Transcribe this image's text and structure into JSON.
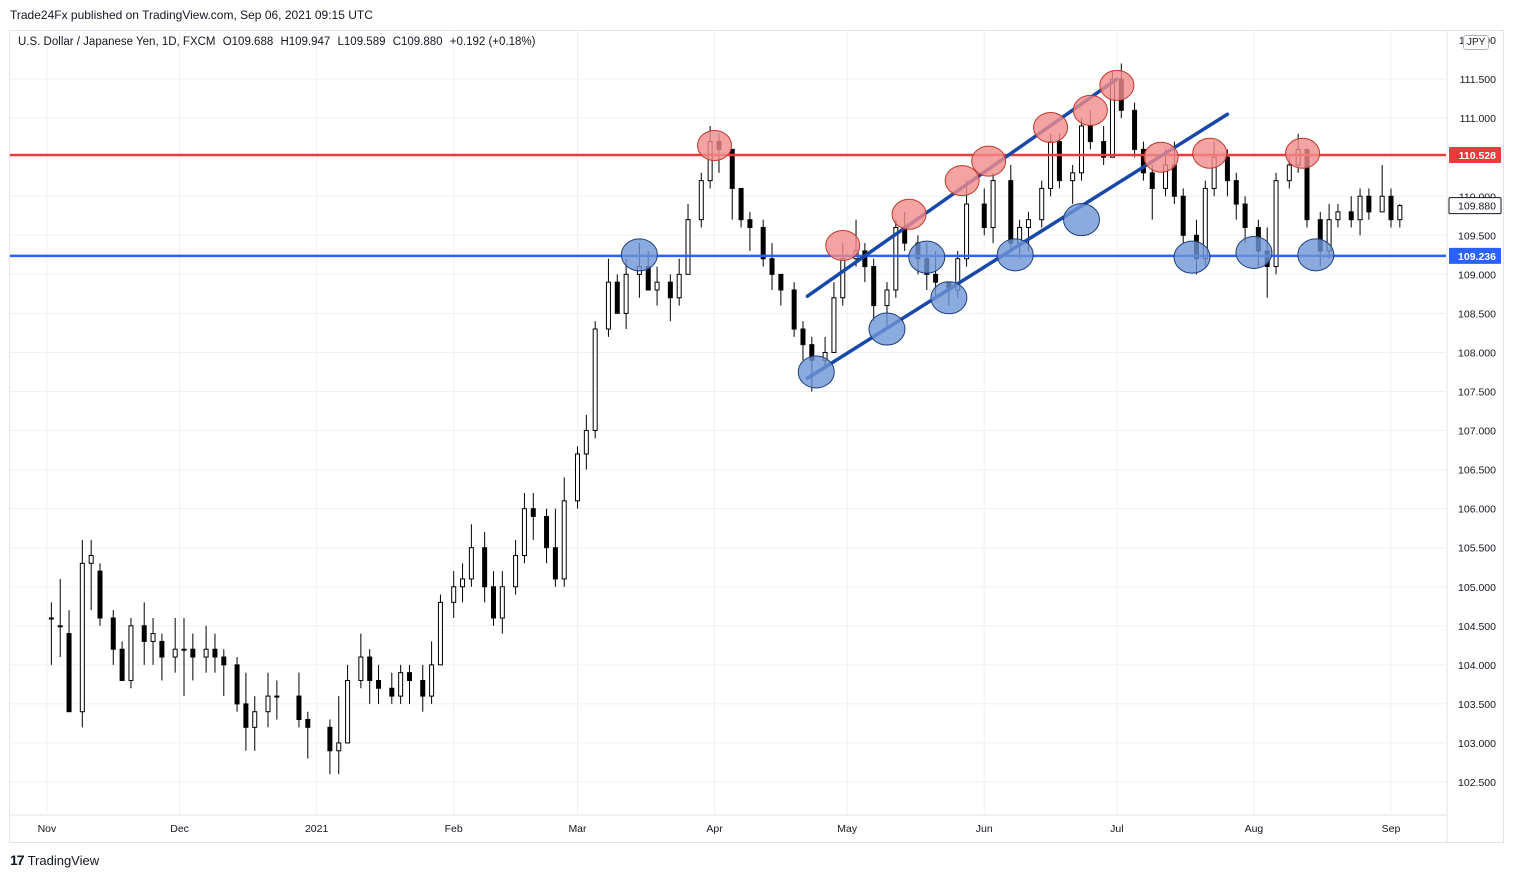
{
  "header": {
    "publisher": "Trade24Fx published on TradingView.com, Sep 06, 2021 09:15 UTC"
  },
  "legend": {
    "symbol": "U.S. Dollar / Japanese Yen, 1D, FXCM",
    "open": "O109.688",
    "high": "H109.947",
    "low": "L109.589",
    "close": "C109.880",
    "change": "+0.192 (+0.18%)"
  },
  "currency_badge": "JPY",
  "footer": {
    "brand": "TradingView"
  },
  "colors": {
    "resistance": "#e83b3b",
    "support": "#2962ff",
    "channel": "#1848a8",
    "grid": "#eef0f4",
    "candle": "#000000",
    "red_marker": "#f28b8b",
    "blue_marker": "#6e95d6"
  },
  "chart_data": {
    "type": "candlestick",
    "title": "U.S. Dollar / Japanese Yen, 1D, FXCM",
    "ylim": [
      102.1,
      112.4
    ],
    "y_ticks": [
      "102.500",
      "103.000",
      "103.500",
      "104.000",
      "104.500",
      "105.000",
      "105.500",
      "106.000",
      "106.500",
      "107.000",
      "107.500",
      "108.000",
      "108.500",
      "109.000",
      "109.500",
      "110.000",
      "110.500",
      "111.000",
      "111.500"
    ],
    "x_ticks": [
      "Nov",
      "Dec",
      "2021",
      "Feb",
      "Mar",
      "Apr",
      "May",
      "Jun",
      "Jul",
      "Aug",
      "Sep"
    ],
    "x_range": [
      "2020-11-01",
      "2021-09-06"
    ],
    "grid": true,
    "horizontal_levels": [
      {
        "value": 110.528,
        "label": "110.528",
        "role": "resistance"
      },
      {
        "value": 109.236,
        "label": "109.236",
        "role": "support"
      }
    ],
    "last_price": {
      "value": 109.88,
      "label": "109.880"
    },
    "top_price_label": "112.000",
    "channel_lines": [
      {
        "role": "upper",
        "start": [
          "2021-04-22",
          108.72
        ],
        "end": [
          "2021-07-01",
          111.5
        ]
      },
      {
        "role": "lower",
        "start": [
          "2021-04-22",
          107.67
        ],
        "end": [
          "2021-07-26",
          111.05
        ]
      }
    ],
    "resistance_touches": [
      [
        "2021-04-01",
        110.65
      ],
      [
        "2021-04-30",
        109.37
      ],
      [
        "2021-05-15",
        109.77
      ],
      [
        "2021-05-27",
        110.2
      ],
      [
        "2021-06-02",
        110.45
      ],
      [
        "2021-06-16",
        110.88
      ],
      [
        "2021-06-25",
        111.1
      ],
      [
        "2021-07-01",
        111.42
      ],
      [
        "2021-07-11",
        110.5
      ],
      [
        "2021-07-22",
        110.55
      ],
      [
        "2021-08-12",
        110.55
      ]
    ],
    "support_touches": [
      [
        "2021-03-15",
        109.25
      ],
      [
        "2021-04-24",
        107.75
      ],
      [
        "2021-05-10",
        108.3
      ],
      [
        "2021-05-19",
        109.22
      ],
      [
        "2021-05-24",
        108.7
      ],
      [
        "2021-06-08",
        109.25
      ],
      [
        "2021-06-23",
        109.7
      ],
      [
        "2021-07-18",
        109.22
      ],
      [
        "2021-08-01",
        109.28
      ],
      [
        "2021-08-15",
        109.25
      ]
    ],
    "candles_ohlc": [
      [
        "2020-11-02",
        104.6,
        104.8,
        104.0,
        104.6
      ],
      [
        "2020-11-04",
        104.5,
        105.1,
        104.1,
        104.5
      ],
      [
        "2020-11-06",
        104.4,
        104.7,
        103.5,
        103.4
      ],
      [
        "2020-11-09",
        103.4,
        105.6,
        103.2,
        105.3
      ],
      [
        "2020-11-11",
        105.3,
        105.6,
        104.7,
        105.4
      ],
      [
        "2020-11-13",
        105.2,
        105.3,
        104.5,
        104.6
      ],
      [
        "2020-11-16",
        104.6,
        104.7,
        104.0,
        104.2
      ],
      [
        "2020-11-18",
        104.2,
        104.3,
        103.8,
        103.8
      ],
      [
        "2020-11-20",
        103.8,
        104.6,
        103.7,
        104.5
      ],
      [
        "2020-11-23",
        104.5,
        104.8,
        104.0,
        104.3
      ],
      [
        "2020-11-25",
        104.3,
        104.6,
        104.0,
        104.4
      ],
      [
        "2020-11-27",
        104.3,
        104.4,
        103.8,
        104.1
      ],
      [
        "2020-11-30",
        104.1,
        104.6,
        103.9,
        104.2
      ],
      [
        "2020-12-02",
        104.2,
        104.6,
        103.6,
        104.2
      ],
      [
        "2020-12-04",
        104.2,
        104.4,
        103.8,
        104.1
      ],
      [
        "2020-12-07",
        104.1,
        104.5,
        103.9,
        104.2
      ],
      [
        "2020-12-09",
        104.2,
        104.4,
        103.9,
        104.1
      ],
      [
        "2020-12-11",
        104.1,
        104.2,
        103.6,
        104.0
      ],
      [
        "2020-12-14",
        104.0,
        104.1,
        103.4,
        103.5
      ],
      [
        "2020-12-16",
        103.5,
        103.9,
        102.9,
        103.2
      ],
      [
        "2020-12-18",
        103.2,
        103.6,
        102.9,
        103.4
      ],
      [
        "2020-12-21",
        103.4,
        103.9,
        103.2,
        103.6
      ],
      [
        "2020-12-23",
        103.6,
        103.8,
        103.3,
        103.6
      ],
      [
        "2020-12-28",
        103.6,
        103.9,
        103.2,
        103.3
      ],
      [
        "2020-12-30",
        103.3,
        103.4,
        102.8,
        103.2
      ],
      [
        "2021-01-04",
        103.2,
        103.3,
        102.6,
        102.9
      ],
      [
        "2021-01-06",
        102.9,
        103.6,
        102.6,
        103.0
      ],
      [
        "2021-01-08",
        103.0,
        104.0,
        103.0,
        103.8
      ],
      [
        "2021-01-11",
        103.8,
        104.4,
        103.7,
        104.1
      ],
      [
        "2021-01-13",
        104.1,
        104.2,
        103.5,
        103.8
      ],
      [
        "2021-01-15",
        103.8,
        104.0,
        103.5,
        103.7
      ],
      [
        "2021-01-18",
        103.7,
        103.9,
        103.5,
        103.6
      ],
      [
        "2021-01-20",
        103.6,
        104.0,
        103.5,
        103.9
      ],
      [
        "2021-01-22",
        103.9,
        104.0,
        103.5,
        103.8
      ],
      [
        "2021-01-25",
        103.8,
        104.0,
        103.4,
        103.6
      ],
      [
        "2021-01-27",
        103.6,
        104.3,
        103.5,
        104.0
      ],
      [
        "2021-01-29",
        104.0,
        104.9,
        104.0,
        104.8
      ],
      [
        "2021-02-01",
        104.8,
        105.2,
        104.6,
        105.0
      ],
      [
        "2021-02-03",
        105.0,
        105.3,
        104.8,
        105.1
      ],
      [
        "2021-02-05",
        105.1,
        105.8,
        105.0,
        105.5
      ],
      [
        "2021-02-08",
        105.5,
        105.7,
        104.8,
        105.0
      ],
      [
        "2021-02-10",
        105.0,
        105.2,
        104.5,
        104.6
      ],
      [
        "2021-02-12",
        104.6,
        105.2,
        104.4,
        105.0
      ],
      [
        "2021-02-15",
        105.0,
        105.6,
        104.9,
        105.4
      ],
      [
        "2021-02-17",
        105.4,
        106.2,
        105.3,
        106.0
      ],
      [
        "2021-02-19",
        106.0,
        106.2,
        105.6,
        105.9
      ],
      [
        "2021-02-22",
        105.9,
        106.0,
        105.3,
        105.5
      ],
      [
        "2021-02-24",
        105.5,
        106.0,
        105.0,
        105.1
      ],
      [
        "2021-02-26",
        105.1,
        106.4,
        105.0,
        106.1
      ],
      [
        "2021-03-01",
        106.1,
        106.8,
        106.0,
        106.7
      ],
      [
        "2021-03-03",
        106.7,
        107.2,
        106.5,
        107.0
      ],
      [
        "2021-03-05",
        107.0,
        108.4,
        106.9,
        108.3
      ],
      [
        "2021-03-08",
        108.3,
        109.2,
        108.2,
        108.9
      ],
      [
        "2021-03-10",
        108.9,
        109.0,
        108.5,
        108.5
      ],
      [
        "2021-03-12",
        108.5,
        109.2,
        108.3,
        109.0
      ],
      [
        "2021-03-15",
        109.0,
        109.4,
        108.7,
        109.1
      ],
      [
        "2021-03-17",
        109.1,
        109.3,
        108.8,
        108.8
      ],
      [
        "2021-03-19",
        108.8,
        109.1,
        108.6,
        108.9
      ],
      [
        "2021-03-22",
        108.9,
        109.0,
        108.4,
        108.7
      ],
      [
        "2021-03-24",
        108.7,
        109.2,
        108.6,
        109.0
      ],
      [
        "2021-03-26",
        109.0,
        109.9,
        109.0,
        109.7
      ],
      [
        "2021-03-29",
        109.7,
        110.3,
        109.6,
        110.2
      ],
      [
        "2021-03-31",
        110.2,
        110.9,
        110.1,
        110.7
      ],
      [
        "2021-04-02",
        110.7,
        110.8,
        110.3,
        110.6
      ],
      [
        "2021-04-05",
        110.6,
        110.6,
        109.7,
        110.1
      ],
      [
        "2021-04-07",
        110.1,
        110.0,
        109.6,
        109.7
      ],
      [
        "2021-04-09",
        109.7,
        109.8,
        109.3,
        109.6
      ],
      [
        "2021-04-12",
        109.6,
        109.7,
        109.1,
        109.2
      ],
      [
        "2021-04-14",
        109.2,
        109.4,
        108.8,
        109.0
      ],
      [
        "2021-04-16",
        109.0,
        109.0,
        108.6,
        108.8
      ],
      [
        "2021-04-19",
        108.8,
        108.9,
        108.2,
        108.3
      ],
      [
        "2021-04-21",
        108.3,
        108.4,
        107.9,
        108.1
      ],
      [
        "2021-04-23",
        108.1,
        108.2,
        107.5,
        107.9
      ],
      [
        "2021-04-26",
        107.9,
        108.2,
        107.8,
        108.0
      ],
      [
        "2021-04-28",
        108.0,
        108.9,
        108.0,
        108.7
      ],
      [
        "2021-04-30",
        108.7,
        109.4,
        108.6,
        109.2
      ],
      [
        "2021-05-03",
        109.2,
        109.7,
        109.1,
        109.3
      ],
      [
        "2021-05-05",
        109.3,
        109.4,
        108.9,
        109.1
      ],
      [
        "2021-05-07",
        109.1,
        109.2,
        108.4,
        108.6
      ],
      [
        "2021-05-10",
        108.6,
        108.9,
        108.3,
        108.8
      ],
      [
        "2021-05-12",
        108.8,
        109.7,
        108.7,
        109.6
      ],
      [
        "2021-05-14",
        109.6,
        109.8,
        109.3,
        109.4
      ],
      [
        "2021-05-17",
        109.4,
        109.5,
        109.0,
        109.2
      ],
      [
        "2021-05-19",
        109.2,
        109.4,
        108.8,
        109.0
      ],
      [
        "2021-05-21",
        109.0,
        109.3,
        108.7,
        108.9
      ],
      [
        "2021-05-24",
        108.9,
        108.9,
        108.6,
        108.8
      ],
      [
        "2021-05-26",
        108.8,
        109.3,
        108.7,
        109.2
      ],
      [
        "2021-05-28",
        109.2,
        110.2,
        109.1,
        109.9
      ],
      [
        "2021-06-01",
        109.9,
        110.1,
        109.5,
        109.6
      ],
      [
        "2021-06-03",
        109.6,
        110.3,
        109.4,
        110.2
      ],
      [
        "2021-06-07",
        110.2,
        110.4,
        109.3,
        109.4
      ],
      [
        "2021-06-09",
        109.4,
        109.7,
        109.2,
        109.6
      ],
      [
        "2021-06-11",
        109.6,
        109.8,
        109.3,
        109.7
      ],
      [
        "2021-06-14",
        109.7,
        110.2,
        109.6,
        110.1
      ],
      [
        "2021-06-16",
        110.1,
        110.8,
        110.0,
        110.7
      ],
      [
        "2021-06-18",
        110.7,
        110.8,
        110.1,
        110.2
      ],
      [
        "2021-06-21",
        110.2,
        110.4,
        109.9,
        110.3
      ],
      [
        "2021-06-23",
        110.3,
        111.0,
        110.2,
        110.9
      ],
      [
        "2021-06-25",
        110.9,
        111.1,
        110.6,
        110.7
      ],
      [
        "2021-06-28",
        110.7,
        110.9,
        110.4,
        110.5
      ],
      [
        "2021-06-30",
        110.5,
        111.6,
        110.5,
        111.5
      ],
      [
        "2021-07-02",
        111.5,
        111.7,
        111.0,
        111.1
      ],
      [
        "2021-07-05",
        111.1,
        111.2,
        110.5,
        110.6
      ],
      [
        "2021-07-07",
        110.6,
        110.7,
        110.2,
        110.3
      ],
      [
        "2021-07-09",
        110.3,
        110.4,
        109.7,
        110.1
      ],
      [
        "2021-07-12",
        110.1,
        110.6,
        110.0,
        110.4
      ],
      [
        "2021-07-14",
        110.4,
        110.7,
        109.9,
        110.0
      ],
      [
        "2021-07-16",
        110.0,
        110.1,
        109.4,
        109.5
      ],
      [
        "2021-07-19",
        109.5,
        109.7,
        109.0,
        109.2
      ],
      [
        "2021-07-21",
        109.2,
        110.2,
        109.1,
        110.1
      ],
      [
        "2021-07-23",
        110.1,
        110.7,
        110.0,
        110.5
      ],
      [
        "2021-07-26",
        110.5,
        110.6,
        110.0,
        110.2
      ],
      [
        "2021-07-28",
        110.2,
        110.3,
        109.7,
        109.9
      ],
      [
        "2021-07-30",
        109.9,
        110.0,
        109.4,
        109.6
      ],
      [
        "2021-08-02",
        109.6,
        109.7,
        109.1,
        109.3
      ],
      [
        "2021-08-04",
        109.3,
        109.6,
        108.7,
        109.1
      ],
      [
        "2021-08-06",
        109.1,
        110.3,
        109.0,
        110.2
      ],
      [
        "2021-08-09",
        110.2,
        110.5,
        110.1,
        110.4
      ],
      [
        "2021-08-11",
        110.4,
        110.8,
        110.3,
        110.6
      ],
      [
        "2021-08-13",
        110.6,
        110.6,
        109.6,
        109.7
      ],
      [
        "2021-08-16",
        109.7,
        109.8,
        109.1,
        109.3
      ],
      [
        "2021-08-18",
        109.3,
        109.9,
        109.2,
        109.7
      ],
      [
        "2021-08-20",
        109.7,
        109.9,
        109.6,
        109.8
      ],
      [
        "2021-08-23",
        109.8,
        110.0,
        109.6,
        109.7
      ],
      [
        "2021-08-25",
        109.7,
        110.1,
        109.5,
        110.0
      ],
      [
        "2021-08-27",
        110.0,
        110.1,
        109.7,
        109.8
      ],
      [
        "2021-08-30",
        109.8,
        110.4,
        109.8,
        110.0
      ],
      [
        "2021-09-01",
        110.0,
        110.1,
        109.6,
        109.7
      ],
      [
        "2021-09-03",
        109.7,
        109.9,
        109.6,
        109.88
      ]
    ]
  }
}
